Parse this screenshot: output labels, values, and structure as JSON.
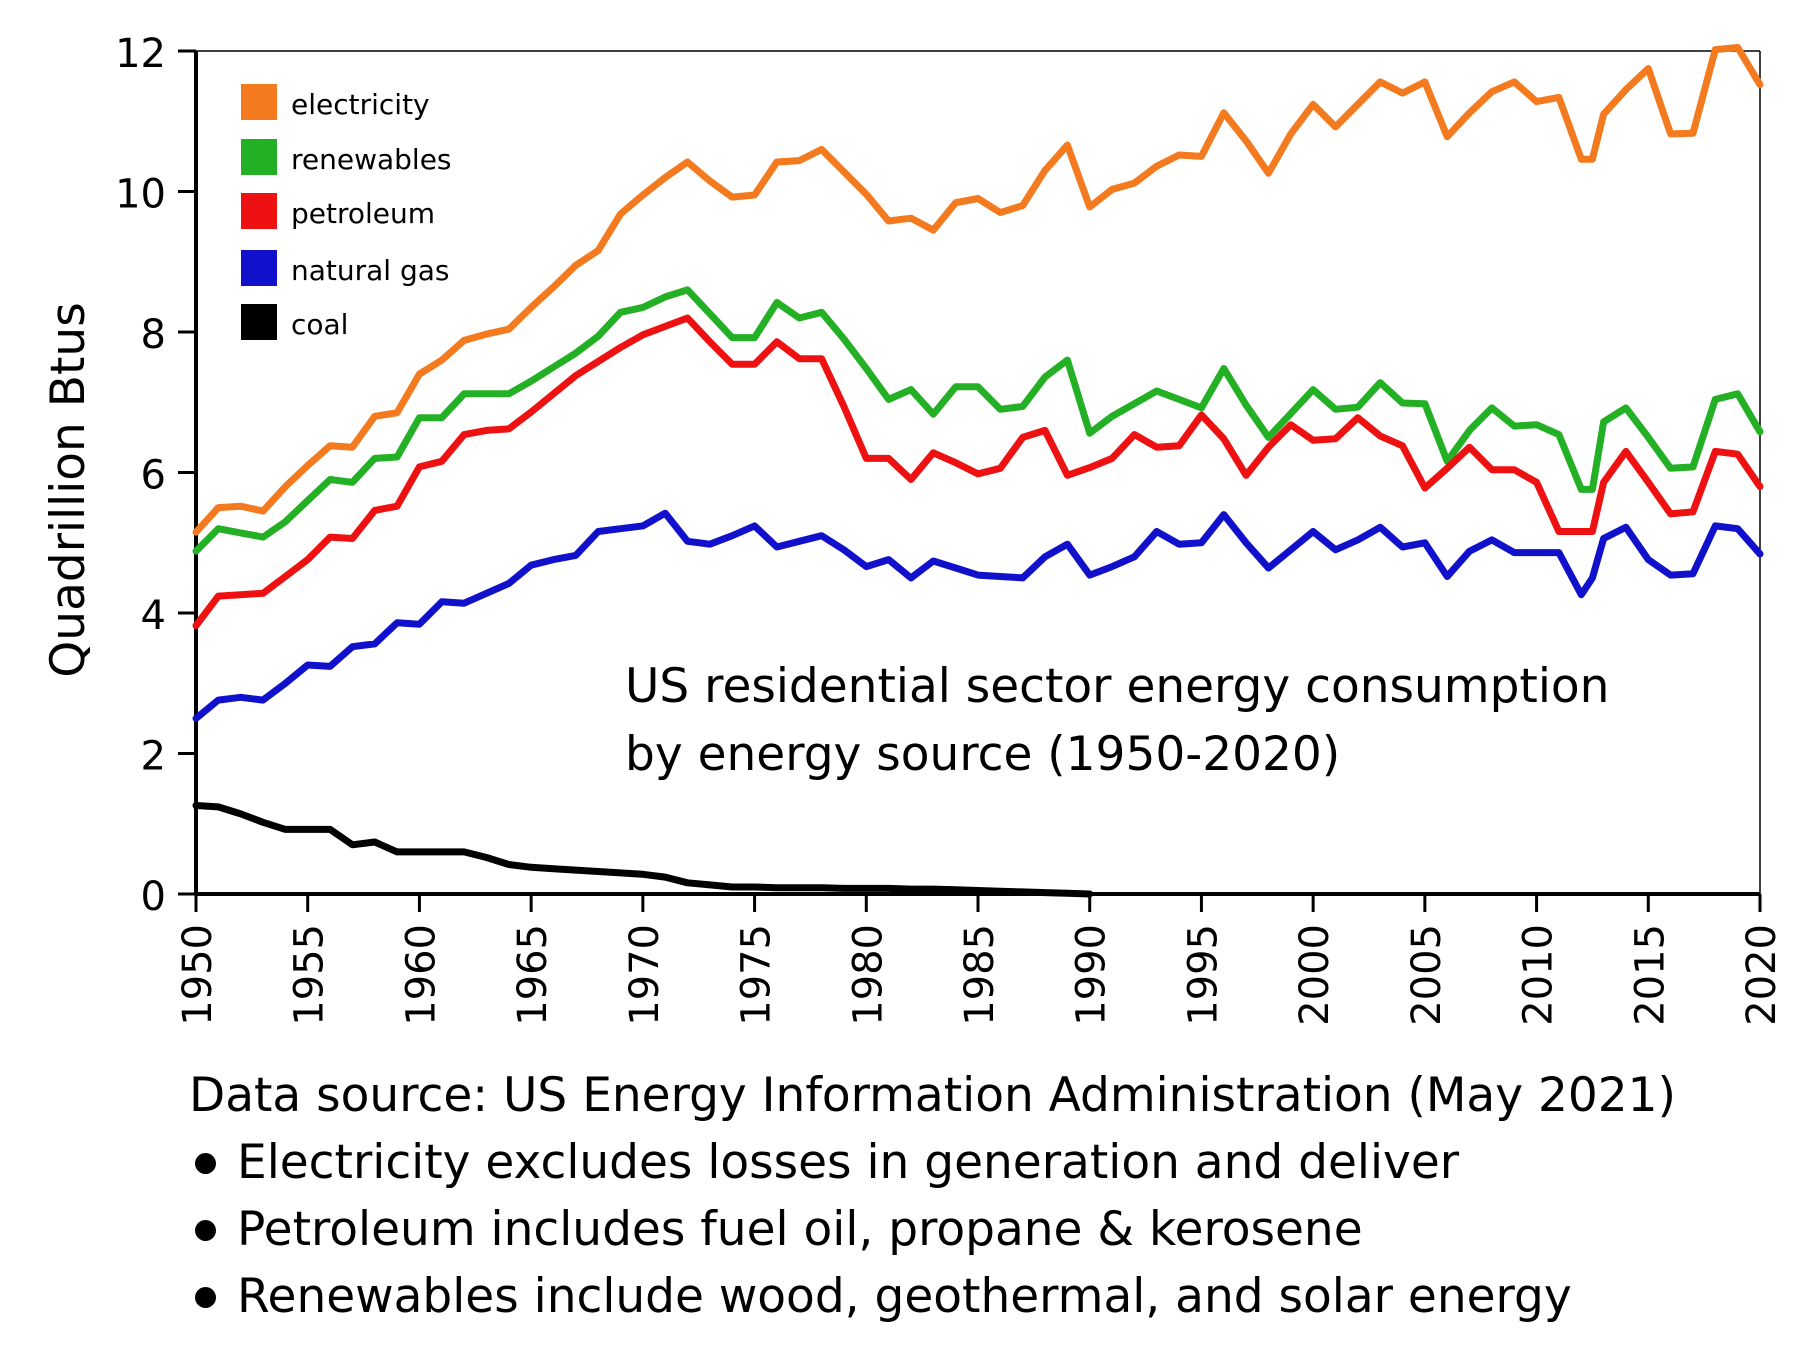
{
  "chart_data": {
    "type": "line",
    "title": "US residential sector energy consumption",
    "subtitle": "by energy source (1950-2020)",
    "xlabel": "",
    "ylabel": "Quadrillion Btus",
    "xlim": [
      1950,
      2020
    ],
    "ylim": [
      0,
      12
    ],
    "grid": false,
    "legend_position": "top-left",
    "x_ticks": [
      "1950",
      "1955",
      "1960",
      "1965",
      "1970",
      "1975",
      "1980",
      "1985",
      "1990",
      "1995",
      "2000",
      "2005",
      "2010",
      "2015",
      "2020"
    ],
    "y_ticks": [
      "0",
      "2",
      "4",
      "6",
      "8",
      "10",
      "12"
    ],
    "series": [
      {
        "name": "electricity",
        "color": "#f47a1f",
        "x": [
          1950,
          1951,
          1952,
          1953,
          1954,
          1955,
          1956,
          1957,
          1958,
          1959,
          1960,
          1961,
          1962,
          1963,
          1964,
          1965,
          1966,
          1967,
          1968,
          1969,
          1970,
          1971,
          1972,
          1973,
          1974,
          1975,
          1976,
          1977,
          1978,
          1979,
          1980,
          1981,
          1982,
          1983,
          1984,
          1985,
          1986,
          1987,
          1988,
          1989,
          1990,
          1991,
          1992,
          1993,
          1994,
          1995,
          1996,
          1997,
          1998,
          1999,
          2000,
          2001,
          2002,
          2003,
          2004,
          2005,
          2006,
          2007,
          2008,
          2009,
          2010,
          2011,
          2012,
          2012.5,
          2013,
          2014,
          2015,
          2016,
          2017,
          2018,
          2019,
          2020
        ],
        "values": [
          5.15,
          5.5,
          5.52,
          5.45,
          5.8,
          6.1,
          6.38,
          6.36,
          6.8,
          6.85,
          7.4,
          7.6,
          7.88,
          7.97,
          8.04,
          8.35,
          8.64,
          8.95,
          9.16,
          9.68,
          9.95,
          10.2,
          10.42,
          10.15,
          9.92,
          9.95,
          10.42,
          10.44,
          10.6,
          10.28,
          9.96,
          9.58,
          9.62,
          9.45,
          9.84,
          9.9,
          9.7,
          9.8,
          10.3,
          10.66,
          9.78,
          10.03,
          10.12,
          10.36,
          10.52,
          10.5,
          11.12,
          10.72,
          10.26,
          10.82,
          11.24,
          10.92,
          11.24,
          11.56,
          11.4,
          11.56,
          10.78,
          11.12,
          11.42,
          11.56,
          11.28,
          11.34,
          10.46,
          10.46,
          11.1,
          11.45,
          11.75,
          10.82,
          10.83,
          12.02,
          12.05,
          11.52
        ]
      },
      {
        "name": "renewables",
        "color": "#23b025",
        "x": [
          1950,
          1951,
          1952,
          1953,
          1954,
          1955,
          1956,
          1957,
          1958,
          1959,
          1960,
          1961,
          1962,
          1963,
          1964,
          1965,
          1966,
          1967,
          1968,
          1969,
          1970,
          1971,
          1972,
          1973,
          1974,
          1975,
          1976,
          1977,
          1978,
          1979,
          1980,
          1981,
          1982,
          1983,
          1984,
          1985,
          1986,
          1987,
          1988,
          1989,
          1990,
          1991,
          1992,
          1993,
          1994,
          1995,
          1996,
          1997,
          1998,
          1999,
          2000,
          2001,
          2002,
          2003,
          2004,
          2005,
          2006,
          2007,
          2008,
          2009,
          2010,
          2011,
          2012,
          2012.5,
          2013,
          2014,
          2015,
          2016,
          2017,
          2018,
          2019,
          2020
        ],
        "values": [
          4.88,
          5.2,
          5.14,
          5.08,
          5.3,
          5.6,
          5.9,
          5.86,
          6.2,
          6.22,
          6.78,
          6.78,
          7.12,
          7.12,
          7.12,
          7.3,
          7.5,
          7.7,
          7.94,
          8.28,
          8.35,
          8.5,
          8.6,
          8.26,
          7.92,
          7.92,
          8.42,
          8.2,
          8.28,
          7.9,
          7.48,
          7.04,
          7.18,
          6.83,
          7.22,
          7.22,
          6.9,
          6.94,
          7.36,
          7.6,
          6.56,
          6.8,
          6.98,
          7.16,
          7.04,
          6.92,
          7.48,
          6.96,
          6.5,
          6.84,
          7.18,
          6.9,
          6.93,
          7.28,
          6.99,
          6.98,
          6.16,
          6.6,
          6.92,
          6.66,
          6.68,
          6.54,
          5.76,
          5.76,
          6.72,
          6.92,
          6.5,
          6.06,
          6.08,
          7.04,
          7.12,
          6.58
        ]
      },
      {
        "name": "petroleum",
        "color": "#ee1111",
        "x": [
          1950,
          1951,
          1952,
          1953,
          1954,
          1955,
          1956,
          1957,
          1958,
          1959,
          1960,
          1961,
          1962,
          1963,
          1964,
          1965,
          1966,
          1967,
          1968,
          1969,
          1970,
          1971,
          1972,
          1973,
          1974,
          1975,
          1976,
          1977,
          1978,
          1979,
          1980,
          1981,
          1982,
          1983,
          1984,
          1985,
          1986,
          1987,
          1988,
          1989,
          1990,
          1991,
          1992,
          1993,
          1994,
          1995,
          1996,
          1997,
          1998,
          1999,
          2000,
          2001,
          2002,
          2003,
          2004,
          2005,
          2006,
          2007,
          2008,
          2009,
          2010,
          2011,
          2012,
          2012.5,
          2013,
          2014,
          2015,
          2016,
          2017,
          2018,
          2019,
          2020
        ],
        "values": [
          3.82,
          4.24,
          4.26,
          4.28,
          4.52,
          4.76,
          5.08,
          5.06,
          5.46,
          5.52,
          6.08,
          6.16,
          6.54,
          6.6,
          6.62,
          6.86,
          7.12,
          7.38,
          7.58,
          7.78,
          7.96,
          8.08,
          8.2,
          7.86,
          7.54,
          7.54,
          7.86,
          7.62,
          7.62,
          6.94,
          6.2,
          6.2,
          5.9,
          6.28,
          6.14,
          5.98,
          6.06,
          6.5,
          6.6,
          5.96,
          6.07,
          6.2,
          6.54,
          6.36,
          6.38,
          6.82,
          6.48,
          5.96,
          6.36,
          6.68,
          6.46,
          6.48,
          6.78,
          6.52,
          6.38,
          5.78,
          6.06,
          6.36,
          6.04,
          6.04,
          5.86,
          5.16,
          5.16,
          5.16,
          5.86,
          6.3,
          5.86,
          5.41,
          5.44,
          6.3,
          6.26,
          5.8
        ]
      },
      {
        "name": "natural gas",
        "color": "#1111cc",
        "x": [
          1950,
          1951,
          1952,
          1953,
          1954,
          1955,
          1956,
          1957,
          1958,
          1959,
          1960,
          1961,
          1962,
          1963,
          1964,
          1965,
          1966,
          1967,
          1968,
          1969,
          1970,
          1971,
          1972,
          1973,
          1974,
          1975,
          1976,
          1977,
          1978,
          1979,
          1980,
          1981,
          1982,
          1983,
          1984,
          1985,
          1986,
          1987,
          1988,
          1989,
          1990,
          1991,
          1992,
          1993,
          1994,
          1995,
          1996,
          1997,
          1998,
          1999,
          2000,
          2001,
          2002,
          2003,
          2004,
          2005,
          2006,
          2007,
          2008,
          2009,
          2010,
          2011,
          2012,
          2012.5,
          2013,
          2014,
          2015,
          2016,
          2017,
          2018,
          2019,
          2020
        ],
        "values": [
          2.5,
          2.76,
          2.8,
          2.76,
          3.0,
          3.26,
          3.24,
          3.52,
          3.56,
          3.86,
          3.84,
          4.16,
          4.14,
          4.28,
          4.42,
          4.68,
          4.76,
          4.82,
          5.16,
          5.2,
          5.24,
          5.42,
          5.02,
          4.98,
          5.1,
          5.24,
          4.94,
          5.02,
          5.1,
          4.9,
          4.66,
          4.76,
          4.5,
          4.74,
          4.64,
          4.54,
          4.52,
          4.5,
          4.8,
          4.98,
          4.54,
          4.66,
          4.8,
          5.16,
          4.98,
          5.0,
          5.4,
          5.0,
          4.64,
          4.9,
          5.16,
          4.9,
          5.04,
          5.22,
          4.94,
          5.0,
          4.52,
          4.88,
          5.04,
          4.86,
          4.86,
          4.86,
          4.26,
          4.5,
          5.06,
          5.22,
          4.76,
          4.54,
          4.56,
          5.24,
          5.2,
          4.84
        ]
      },
      {
        "name": "coal",
        "color": "#000000",
        "x": [
          1950,
          1951,
          1952,
          1953,
          1954,
          1955,
          1956,
          1957,
          1958,
          1959,
          1960,
          1961,
          1962,
          1963,
          1964,
          1965,
          1966,
          1967,
          1968,
          1969,
          1970,
          1971,
          1972,
          1973,
          1974,
          1975,
          1976,
          1977,
          1978,
          1979,
          1980,
          1981,
          1982,
          1983,
          1984,
          1985,
          1986,
          1987,
          1988,
          1989,
          1990
        ],
        "values": [
          1.26,
          1.24,
          1.14,
          1.02,
          0.92,
          0.92,
          0.92,
          0.7,
          0.74,
          0.6,
          0.6,
          0.6,
          0.6,
          0.52,
          0.42,
          0.38,
          0.36,
          0.34,
          0.32,
          0.3,
          0.28,
          0.24,
          0.16,
          0.13,
          0.1,
          0.1,
          0.09,
          0.09,
          0.09,
          0.08,
          0.08,
          0.08,
          0.07,
          0.07,
          0.06,
          0.05,
          0.04,
          0.03,
          0.02,
          0.01,
          0.0
        ]
      }
    ]
  },
  "notes": {
    "source": "Data source: US Energy Information Administration (May 2021)",
    "bullets": [
      "Electricity excludes losses in generation and deliver",
      "Petroleum includes fuel oil, propane & kerosene",
      "Renewables include wood, geothermal, and solar energy"
    ]
  }
}
